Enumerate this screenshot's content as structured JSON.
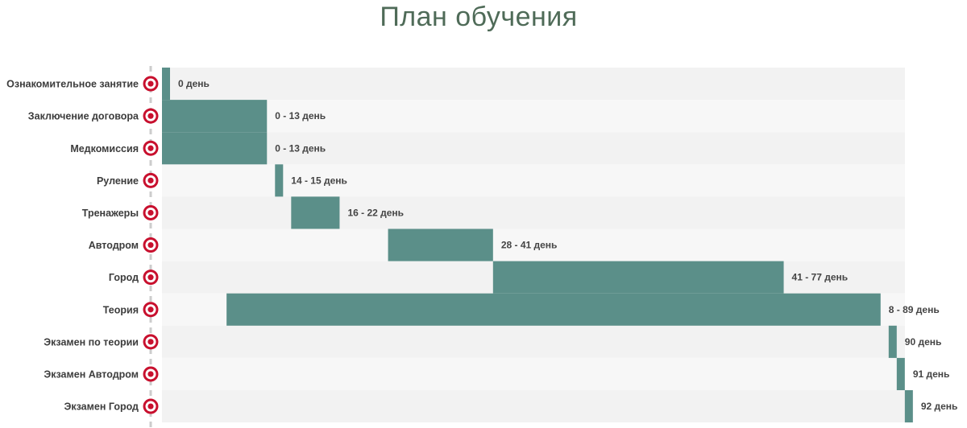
{
  "title": "План обучения",
  "colors": {
    "bar": "#5b8f89",
    "marker_ring": "#c8102e",
    "axis_line": "#cccccc",
    "row_even": "#f7f7f7",
    "row_odd": "#f2f2f2",
    "title": "#4f6b58"
  },
  "chart_data": {
    "type": "gantt",
    "title": "План обучения",
    "x_unit": "день",
    "xlim": [
      0,
      92
    ],
    "grid": false,
    "legend": "none",
    "tasks": [
      {
        "name": "Ознакомительное занятие",
        "start": 0,
        "end": 0,
        "label": "0 день"
      },
      {
        "name": "Заключение договора",
        "start": 0,
        "end": 13,
        "label": "0 - 13 день"
      },
      {
        "name": "Медкомиссия",
        "start": 0,
        "end": 13,
        "label": "0 - 13 день"
      },
      {
        "name": "Руление",
        "start": 14,
        "end": 15,
        "label": "14 - 15 день"
      },
      {
        "name": "Тренажеры",
        "start": 16,
        "end": 22,
        "label": "16 - 22 день"
      },
      {
        "name": "Автодром",
        "start": 28,
        "end": 41,
        "label": "28 - 41 день"
      },
      {
        "name": "Город",
        "start": 41,
        "end": 77,
        "label": "41 - 77 день"
      },
      {
        "name": "Теория",
        "start": 8,
        "end": 89,
        "label": "8 - 89 день"
      },
      {
        "name": "Экзамен по теории",
        "start": 90,
        "end": 90,
        "label": "90 день"
      },
      {
        "name": "Экзамен Автодром",
        "start": 91,
        "end": 91,
        "label": "91 день"
      },
      {
        "name": "Экзамен Город",
        "start": 92,
        "end": 92,
        "label": "92 день"
      }
    ]
  }
}
